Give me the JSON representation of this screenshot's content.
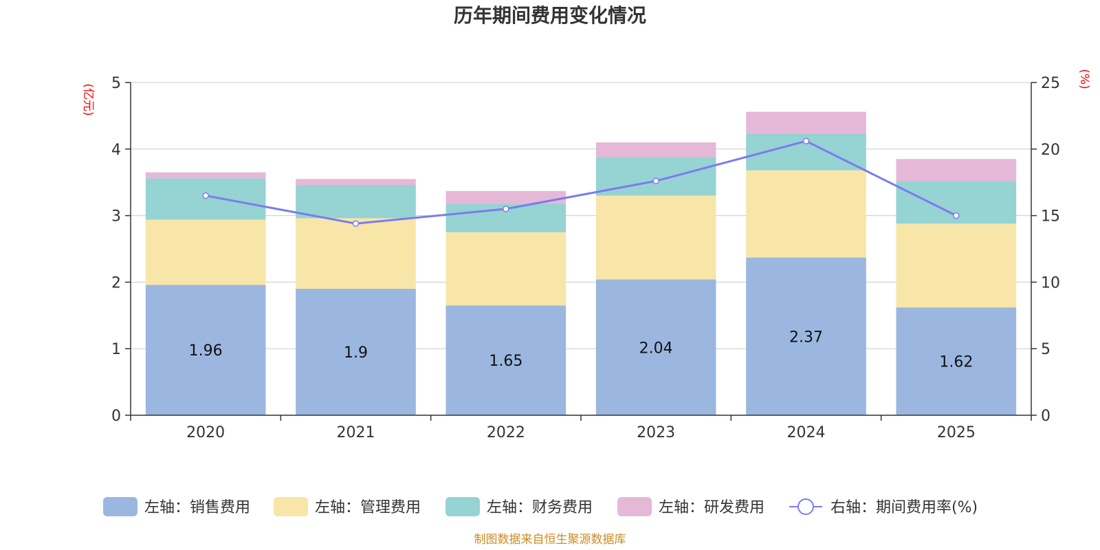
{
  "colors": {
    "sales": "#9bb7e0",
    "admin": "#f7e6a8",
    "finance": "#96d3d3",
    "rnd": "#e6b8d8",
    "rate_line": "#7b7bef",
    "grid": "#cccccc",
    "axis": "#333333",
    "unit": "#ff0000",
    "source": "#d08a1e"
  },
  "source_text": "制图数据来自恒生聚源数据库",
  "chart_data": {
    "type": "bar",
    "stacked": true,
    "title": "历年期间费用变化情况",
    "categories": [
      "2020",
      "2021",
      "2022",
      "2023",
      "2024",
      "2025"
    ],
    "y_left": {
      "label": "(亿元)",
      "min": 0,
      "max": 5,
      "ticks": [
        "0",
        "1",
        "2",
        "3",
        "4",
        "5"
      ]
    },
    "y_right": {
      "label": "(%)",
      "min": 0,
      "max": 25,
      "ticks": [
        "0",
        "5",
        "10",
        "15",
        "20",
        "25"
      ]
    },
    "series": [
      {
        "key": "sales",
        "name": "左轴：销售费用",
        "axis": "left",
        "values": [
          1.96,
          1.9,
          1.65,
          2.04,
          2.37,
          1.62
        ],
        "labels": [
          "1.96",
          "1.9",
          "1.65",
          "2.04",
          "2.37",
          "1.62"
        ]
      },
      {
        "key": "admin",
        "name": "左轴：管理费用",
        "axis": "left",
        "values": [
          0.98,
          1.06,
          1.1,
          1.26,
          1.31,
          1.26
        ]
      },
      {
        "key": "finance",
        "name": "左轴：财务费用",
        "axis": "left",
        "values": [
          0.62,
          0.5,
          0.43,
          0.58,
          0.55,
          0.64
        ]
      },
      {
        "key": "rnd",
        "name": "左轴：研发费用",
        "axis": "left",
        "values": [
          0.09,
          0.09,
          0.19,
          0.22,
          0.33,
          0.33
        ]
      },
      {
        "key": "rate",
        "name": "右轴：期间费用率(%)",
        "axis": "right",
        "type": "line",
        "values": [
          16.5,
          14.4,
          15.5,
          17.6,
          20.6,
          15.0
        ]
      }
    ],
    "grid": true,
    "legend_position": "bottom"
  }
}
